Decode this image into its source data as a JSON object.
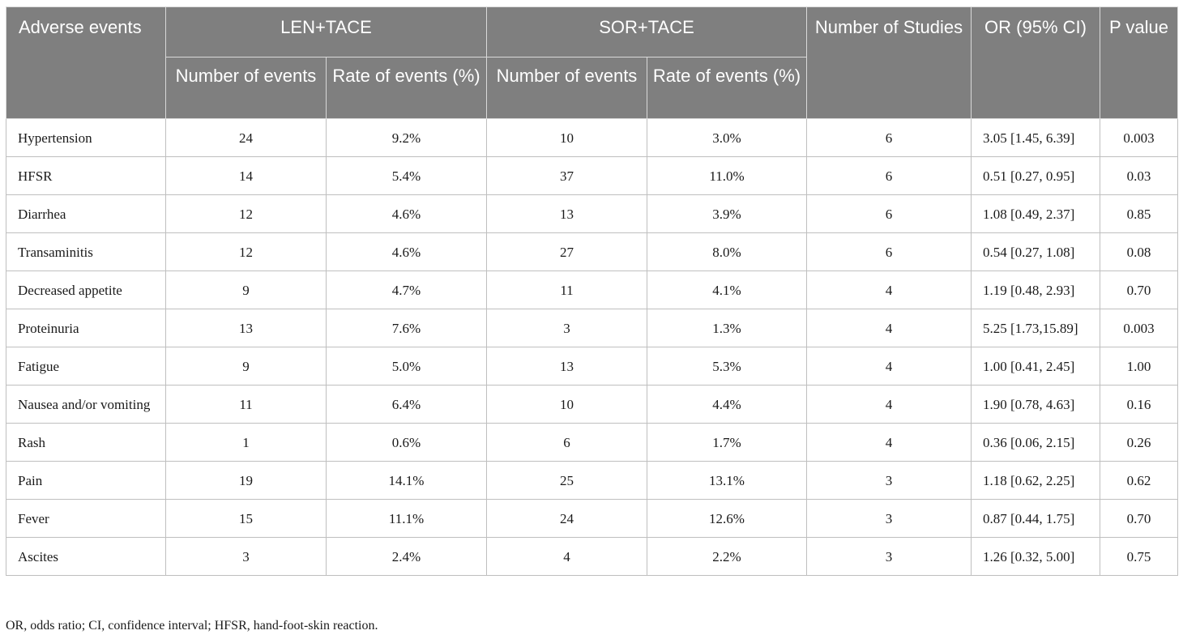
{
  "headers": {
    "adverse_events": "Adverse events",
    "len_tace": "LEN+TACE",
    "sor_tace": "SOR+TACE",
    "number_of_studies": "Number of Studies",
    "or_ci": "OR (95% CI)",
    "p_value": "P value",
    "number_of_events": "Number of events",
    "rate_of_events": "Rate of events (%)"
  },
  "rows": [
    {
      "event": "Hypertension",
      "len_n": "24",
      "len_rate": "9.2%",
      "sor_n": "10",
      "sor_rate": "3.0%",
      "studies": "6",
      "or": "3.05 [1.45, 6.39]",
      "p": "0.003"
    },
    {
      "event": "HFSR",
      "len_n": "14",
      "len_rate": "5.4%",
      "sor_n": "37",
      "sor_rate": "11.0%",
      "studies": "6",
      "or": "0.51 [0.27, 0.95]",
      "p": "0.03"
    },
    {
      "event": "Diarrhea",
      "len_n": "12",
      "len_rate": "4.6%",
      "sor_n": "13",
      "sor_rate": "3.9%",
      "studies": "6",
      "or": "1.08 [0.49, 2.37]",
      "p": "0.85"
    },
    {
      "event": "Transaminitis",
      "len_n": "12",
      "len_rate": "4.6%",
      "sor_n": "27",
      "sor_rate": "8.0%",
      "studies": "6",
      "or": "0.54 [0.27, 1.08]",
      "p": "0.08"
    },
    {
      "event": "Decreased appetite",
      "len_n": "9",
      "len_rate": "4.7%",
      "sor_n": "11",
      "sor_rate": "4.1%",
      "studies": "4",
      "or": "1.19 [0.48, 2.93]",
      "p": "0.70"
    },
    {
      "event": "Proteinuria",
      "len_n": "13",
      "len_rate": "7.6%",
      "sor_n": "3",
      "sor_rate": "1.3%",
      "studies": "4",
      "or": "5.25 [1.73,15.89]",
      "p": "0.003"
    },
    {
      "event": "Fatigue",
      "len_n": "9",
      "len_rate": "5.0%",
      "sor_n": "13",
      "sor_rate": "5.3%",
      "studies": "4",
      "or": "1.00 [0.41, 2.45]",
      "p": "1.00"
    },
    {
      "event": "Nausea and/or vomiting",
      "len_n": "11",
      "len_rate": "6.4%",
      "sor_n": "10",
      "sor_rate": "4.4%",
      "studies": "4",
      "or": "1.90 [0.78, 4.63]",
      "p": "0.16"
    },
    {
      "event": "Rash",
      "len_n": "1",
      "len_rate": "0.6%",
      "sor_n": "6",
      "sor_rate": "1.7%",
      "studies": "4",
      "or": "0.36 [0.06, 2.15]",
      "p": "0.26"
    },
    {
      "event": "Pain",
      "len_n": "19",
      "len_rate": "14.1%",
      "sor_n": "25",
      "sor_rate": "13.1%",
      "studies": "3",
      "or": "1.18 [0.62, 2.25]",
      "p": "0.62"
    },
    {
      "event": "Fever",
      "len_n": "15",
      "len_rate": "11.1%",
      "sor_n": "24",
      "sor_rate": "12.6%",
      "studies": "3",
      "or": "0.87 [0.44, 1.75]",
      "p": "0.70"
    },
    {
      "event": "Ascites",
      "len_n": "3",
      "len_rate": "2.4%",
      "sor_n": "4",
      "sor_rate": "2.2%",
      "studies": "3",
      "or": "1.26 [0.32, 5.00]",
      "p": "0.75"
    }
  ],
  "footnote": "OR, odds ratio; CI, confidence interval; HFSR, hand-foot-skin reaction.",
  "colors": {
    "header_bg": "#7f7f7f",
    "header_text": "#ffffff",
    "border": "#bfbfbf"
  }
}
